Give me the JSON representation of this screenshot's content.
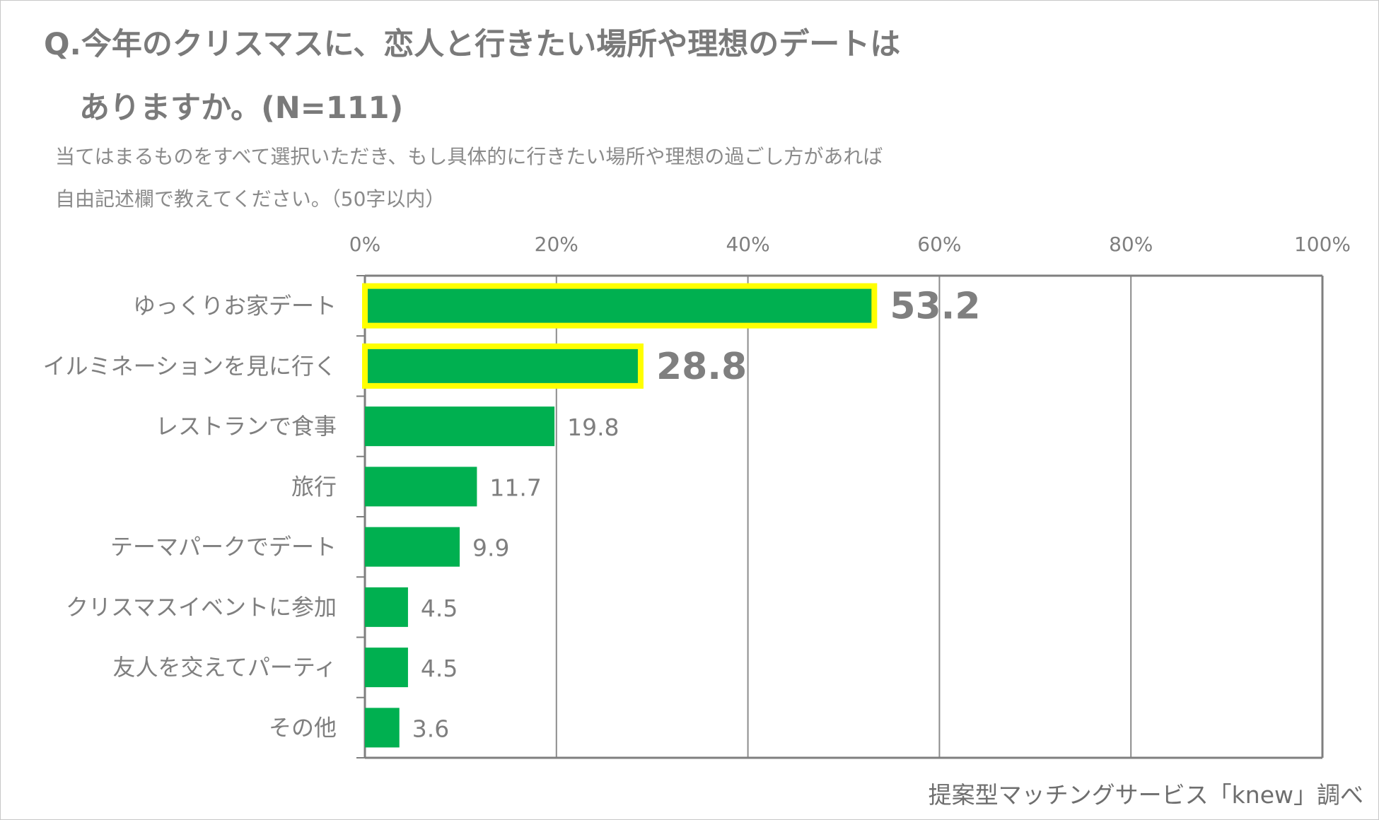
{
  "title": {
    "line1": "Q.今年のクリスマスに、恋人と行きたい場所や理想のデートは",
    "line2": "ありますか。(N=111)"
  },
  "subtitle": {
    "line1": "当てはまるものをすべて選択いただき、もし具体的に行きたい場所や理想の過ごし方があれば",
    "line2": "自由記述欄で教えてください。（50字以内）"
  },
  "source": "提案型マッチングサービス「knew」調べ",
  "colors": {
    "bar": "#00b050",
    "highlight": "#ffff00",
    "axis": "#7f7f7f",
    "grid": "#8c8c8c",
    "text": "#7f7f7f"
  },
  "chart_data": {
    "type": "bar",
    "orientation": "horizontal",
    "categories": [
      "ゆっくりお家デート",
      "イルミネーションを見に行く",
      "レストランで食事",
      "旅行",
      "テーマパークでデート",
      "クリスマスイベントに参加",
      "友人を交えてパーティ",
      "その他"
    ],
    "values": [
      53.2,
      28.8,
      19.8,
      11.7,
      9.9,
      4.5,
      4.5,
      3.6
    ],
    "value_labels": [
      "53.2",
      "28.8",
      "19.8",
      "11.7",
      "9.9",
      "4.5",
      "4.5",
      "3.6"
    ],
    "highlighted": [
      true,
      true,
      false,
      false,
      false,
      false,
      false,
      false
    ],
    "xlim": [
      0,
      100
    ],
    "xticks": [
      "0%",
      "20%",
      "40%",
      "60%",
      "80%",
      "100%"
    ],
    "grid": true,
    "axis_position": "top"
  }
}
